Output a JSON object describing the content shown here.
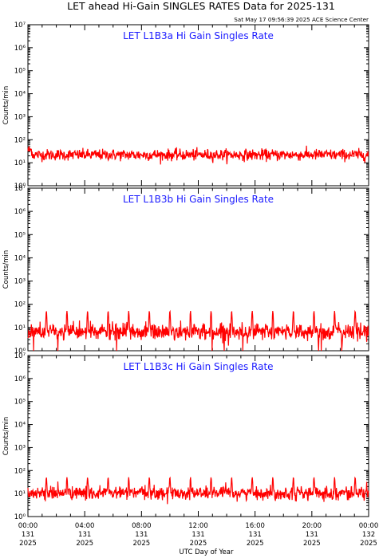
{
  "header": {
    "title": "LET ahead Hi-Gain SINGLES RATES Data for 2025-131",
    "timestamp": "Sat May 17 09:56:39 2025 ACE Science Center"
  },
  "colors": {
    "series": "#ff0000",
    "panel_title": "#1a1aff",
    "axis": "#000000",
    "background": "#ffffff"
  },
  "chart_data": [
    {
      "type": "line",
      "title": "LET L1B3a Hi Gain Singles Rate",
      "ylabel": "Counts/min",
      "yscale": "log",
      "ylim": [
        1,
        10000000
      ],
      "xlim": [
        0,
        24
      ],
      "grid": false,
      "baseline": 22,
      "noise_sigma": 0.22,
      "spike_peak": 0,
      "dropouts": 0,
      "y_ticks": [
        "10⁰",
        "10¹",
        "10²",
        "10³",
        "10⁴",
        "10⁵",
        "10⁶",
        "10⁷"
      ]
    },
    {
      "type": "line",
      "title": "LET L1B3b Hi Gain Singles Rate",
      "ylabel": "Counts/min",
      "yscale": "log",
      "ylim": [
        1,
        10000000
      ],
      "xlim": [
        0,
        24
      ],
      "grid": false,
      "baseline": 6.5,
      "noise_sigma": 0.32,
      "spike_peak": 48,
      "dropouts": 9,
      "y_ticks": [
        "10⁰",
        "10¹",
        "10²",
        "10³",
        "10⁴",
        "10⁵",
        "10⁶",
        "10⁷"
      ]
    },
    {
      "type": "line",
      "title": "LET L1B3c Hi Gain Singles Rate",
      "ylabel": "Counts/min",
      "yscale": "log",
      "ylim": [
        1,
        10000000
      ],
      "xlim": [
        0,
        24
      ],
      "grid": false,
      "baseline": 10.5,
      "noise_sigma": 0.26,
      "spike_peak": 45,
      "dropouts": 0,
      "y_ticks": [
        "10⁰",
        "10¹",
        "10²",
        "10³",
        "10⁴",
        "10⁵",
        "10⁶",
        "10⁷"
      ]
    }
  ],
  "x_axis": {
    "xlabel": "UTC Day of Year",
    "ticks": [
      {
        "hour": 0,
        "time": "00:00",
        "day": "131",
        "year": "2025"
      },
      {
        "hour": 4,
        "time": "04:00",
        "day": "131",
        "year": "2025"
      },
      {
        "hour": 8,
        "time": "08:00",
        "day": "131",
        "year": "2025"
      },
      {
        "hour": 12,
        "time": "12:00",
        "day": "131",
        "year": "2025"
      },
      {
        "hour": 16,
        "time": "16:00",
        "day": "131",
        "year": "2025"
      },
      {
        "hour": 20,
        "time": "20:00",
        "day": "131",
        "year": "2025"
      },
      {
        "hour": 24,
        "time": "00:00",
        "day": "132",
        "year": "2025"
      }
    ]
  }
}
